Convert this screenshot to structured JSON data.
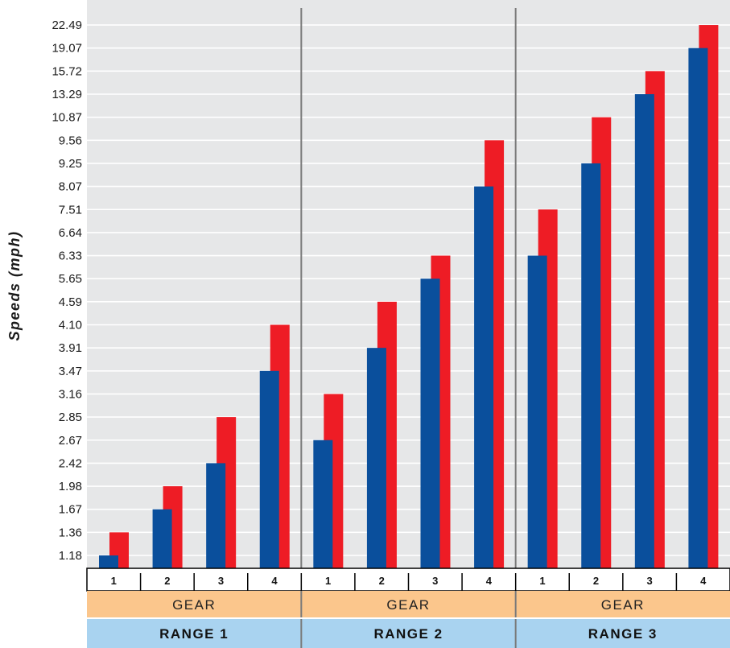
{
  "chart_data": {
    "type": "bar",
    "ylabel": "Speeds (mph)",
    "y_ticks": [
      "1.18",
      "1.36",
      "1.67",
      "1.98",
      "2.42",
      "2.67",
      "2.85",
      "3.16",
      "3.47",
      "3.91",
      "4.10",
      "4.59",
      "5.65",
      "6.33",
      "6.64",
      "7.51",
      "8.07",
      "9.25",
      "9.56",
      "10.87",
      "13.29",
      "15.72",
      "19.07",
      "22.49"
    ],
    "y_scale": "categorical (tick labels evenly spaced)",
    "grid": true,
    "series_colors": [
      "#0A4F9C",
      "#EE1C25"
    ],
    "groups": [
      {
        "range_label": "RANGE 1",
        "gear_label": "GEAR",
        "gears": [
          "1",
          "2",
          "3",
          "4"
        ],
        "series": [
          {
            "values": [
              1.18,
              1.67,
              2.42,
              3.47
            ]
          },
          {
            "values": [
              1.36,
              1.98,
              2.85,
              4.1
            ]
          }
        ]
      },
      {
        "range_label": "RANGE 2",
        "gear_label": "GEAR",
        "gears": [
          "1",
          "2",
          "3",
          "4"
        ],
        "series": [
          {
            "values": [
              2.67,
              3.91,
              5.65,
              8.07
            ]
          },
          {
            "values": [
              3.16,
              4.59,
              6.33,
              9.56
            ]
          }
        ]
      },
      {
        "range_label": "RANGE 3",
        "gear_label": "GEAR",
        "gears": [
          "1",
          "2",
          "3",
          "4"
        ],
        "series": [
          {
            "values": [
              6.33,
              9.25,
              13.29,
              19.07
            ]
          },
          {
            "values": [
              7.51,
              10.87,
              15.72,
              22.49
            ]
          }
        ]
      }
    ]
  },
  "colors": {
    "plot_background": "#E6E7E8",
    "gridline": "#FFFFFF",
    "group_divider": "#7A7A7A",
    "gear_band": "#FBC68C",
    "range_band": "#A9D3F0"
  }
}
